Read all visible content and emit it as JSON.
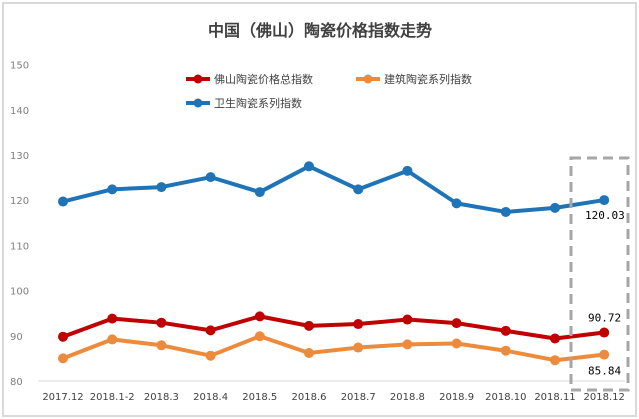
{
  "chart_data": {
    "type": "line",
    "title": "中国（佛山）陶瓷价格指数走势",
    "categories": [
      "2017.12",
      "2018.1-2",
      "2018.3",
      "2018.4",
      "2018.5",
      "2018.6",
      "2018.7",
      "2018.8",
      "2018.9",
      "2018.10",
      "2018.11",
      "2018.12"
    ],
    "ylim": [
      80,
      150
    ],
    "yticks": [
      80,
      90,
      100,
      110,
      120,
      130,
      140,
      150
    ],
    "grid": false,
    "legend_position": "top",
    "series": [
      {
        "name": "佛山陶瓷价格总指数",
        "color": "#c00000",
        "values": [
          89.8,
          93.8,
          92.9,
          91.2,
          94.3,
          92.2,
          92.6,
          93.6,
          92.8,
          91.1,
          89.4,
          90.72
        ]
      },
      {
        "name": "建筑陶瓷系列指数",
        "color": "#ed8b3c",
        "values": [
          85.0,
          89.2,
          87.9,
          85.6,
          89.9,
          86.2,
          87.4,
          88.1,
          88.3,
          86.7,
          84.6,
          85.84
        ]
      },
      {
        "name": "卫生陶瓷系列指数",
        "color": "#1f74b8",
        "values": [
          119.7,
          122.4,
          122.9,
          125.1,
          121.8,
          127.5,
          122.4,
          126.5,
          119.3,
          117.4,
          118.3,
          120.03
        ]
      }
    ],
    "annotations": [
      "120.03",
      "90.72",
      "85.84"
    ],
    "highlight": {
      "category": "2018.12",
      "style": "dashed-box",
      "color": "#a6a6a6"
    }
  }
}
